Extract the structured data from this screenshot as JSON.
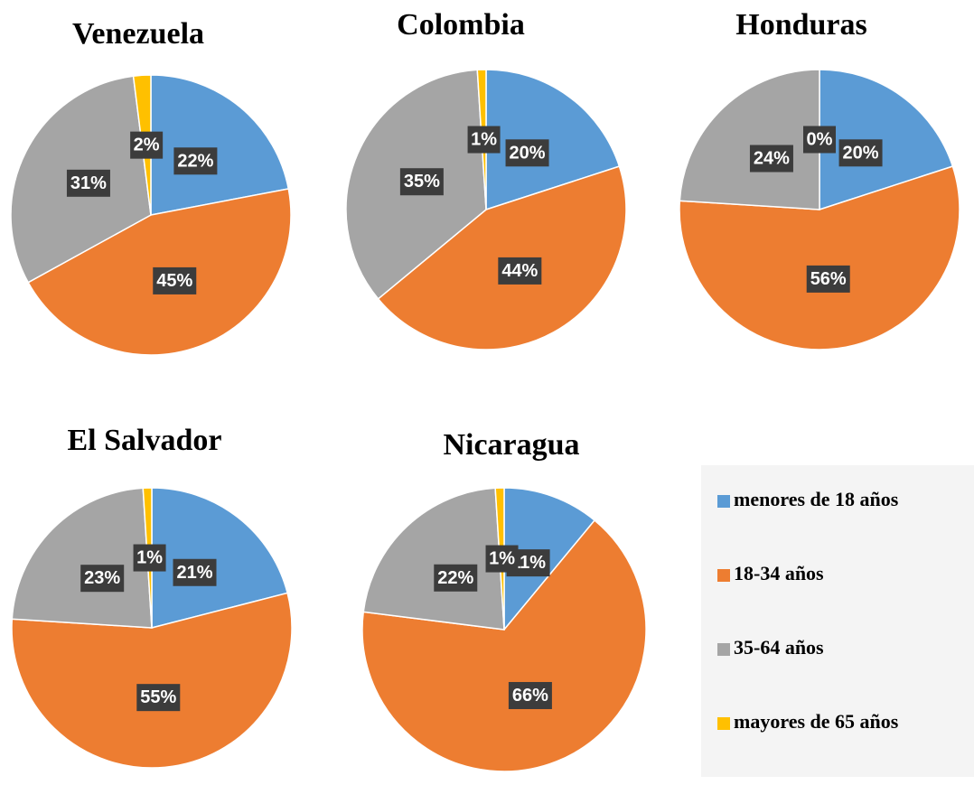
{
  "legend": {
    "labels": [
      "menores de 18 años",
      "18-34 años",
      "35-64 años",
      "mayores de 65 años"
    ],
    "colors": [
      "#5b9bd5",
      "#ed7d31",
      "#a5a5a5",
      "#ffc000"
    ]
  },
  "chart_data": [
    {
      "type": "pie",
      "title": "Venezuela",
      "values": [
        22,
        45,
        31,
        2
      ],
      "value_labels": [
        "22%",
        "45%",
        "31%",
        "2%"
      ]
    },
    {
      "type": "pie",
      "title": "Colombia",
      "values": [
        20,
        44,
        35,
        1
      ],
      "value_labels": [
        "20%",
        "44%",
        "35%",
        "1%"
      ]
    },
    {
      "type": "pie",
      "title": "Honduras",
      "values": [
        20,
        56,
        24,
        0
      ],
      "value_labels": [
        "20%",
        "56%",
        "24%",
        "0%"
      ]
    },
    {
      "type": "pie",
      "title": "El Salvador",
      "values": [
        21,
        55,
        23,
        1
      ],
      "value_labels": [
        "21%",
        "55%",
        "23%",
        "1%"
      ]
    },
    {
      "type": "pie",
      "title": "Nicaragua",
      "values": [
        11,
        66,
        22,
        1
      ],
      "value_labels": [
        "11%",
        "66%",
        "22%",
        "1%"
      ]
    }
  ]
}
